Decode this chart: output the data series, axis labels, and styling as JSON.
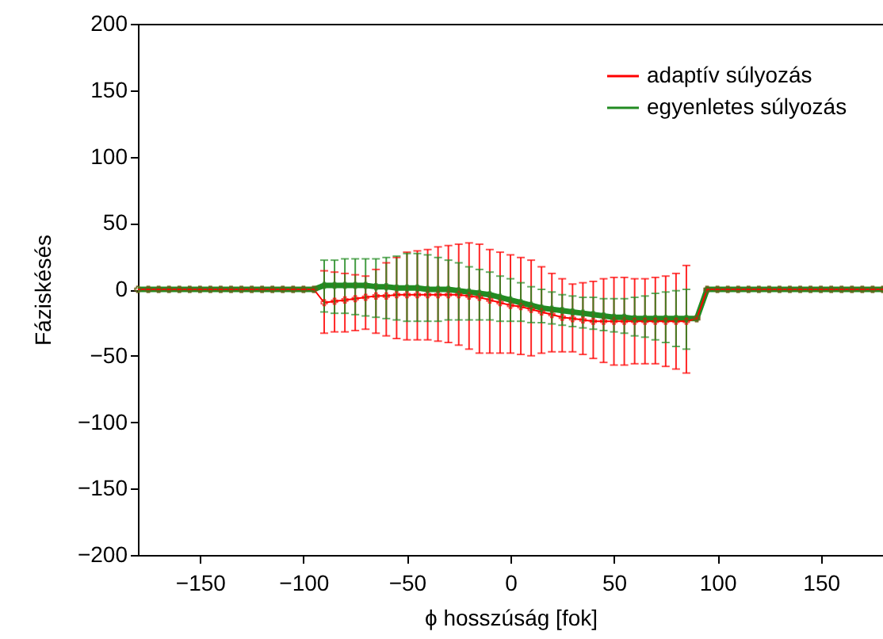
{
  "chart_data": {
    "type": "line",
    "xlabel": "ϕ hosszúság [fok]",
    "ylabel": "Fáziskésés",
    "x": [
      -180,
      -175,
      -170,
      -165,
      -160,
      -155,
      -150,
      -145,
      -140,
      -135,
      -130,
      -125,
      -120,
      -115,
      -110,
      -105,
      -100,
      -95,
      -90,
      -85,
      -80,
      -75,
      -70,
      -65,
      -60,
      -55,
      -50,
      -45,
      -40,
      -35,
      -30,
      -25,
      -20,
      -15,
      -10,
      -5,
      0,
      5,
      10,
      15,
      20,
      25,
      30,
      35,
      40,
      45,
      50,
      55,
      60,
      65,
      70,
      75,
      80,
      85,
      90,
      95,
      100,
      105,
      110,
      115,
      120,
      125,
      130,
      135,
      140,
      145,
      150,
      155,
      160,
      165,
      170,
      175,
      180
    ],
    "series": [
      {
        "name": "adaptív súlyozás",
        "color": "#ff0000",
        "values": [
          0,
          0,
          0,
          0,
          0,
          0,
          0,
          0,
          0,
          0,
          0,
          0,
          0,
          0,
          0,
          0,
          0,
          0,
          -10,
          -9,
          -8,
          -7,
          -6,
          -5,
          -5,
          -4,
          -4,
          -4,
          -4,
          -4,
          -4,
          -4,
          -5,
          -6,
          -8,
          -10,
          -12,
          -13,
          -15,
          -17,
          -19,
          -21,
          -22,
          -23,
          -24,
          -24,
          -24,
          -24,
          -24,
          -24,
          -24,
          -24,
          -24,
          -24,
          -22,
          0,
          0,
          0,
          0,
          0,
          0,
          0,
          0,
          0,
          0,
          0,
          0,
          0,
          0,
          0,
          0,
          0,
          0
        ],
        "errors": [
          null,
          null,
          null,
          null,
          null,
          null,
          null,
          null,
          null,
          null,
          null,
          null,
          null,
          null,
          null,
          null,
          null,
          null,
          [
            -33,
            14
          ],
          [
            -32,
            13
          ],
          [
            -32,
            12
          ],
          [
            -31,
            11
          ],
          [
            -30,
            10
          ],
          [
            -33,
            15
          ],
          [
            -35,
            20
          ],
          [
            -37,
            24
          ],
          [
            -38,
            28
          ],
          [
            -38,
            29
          ],
          [
            -38,
            30
          ],
          [
            -39,
            32
          ],
          [
            -40,
            33
          ],
          [
            -42,
            34
          ],
          [
            -45,
            35
          ],
          [
            -48,
            34
          ],
          [
            -48,
            30
          ],
          [
            -48,
            28
          ],
          [
            -48,
            26
          ],
          [
            -49,
            24
          ],
          [
            -50,
            22
          ],
          [
            -48,
            17
          ],
          [
            -47,
            12
          ],
          [
            -47,
            8
          ],
          [
            -47,
            4
          ],
          [
            -49,
            5
          ],
          [
            -52,
            6
          ],
          [
            -55,
            8
          ],
          [
            -57,
            9
          ],
          [
            -57,
            9
          ],
          [
            -56,
            8
          ],
          [
            -56,
            8
          ],
          [
            -56,
            9
          ],
          [
            -58,
            10
          ],
          [
            -60,
            12
          ],
          [
            -63,
            18
          ],
          null,
          null,
          null,
          null,
          null,
          null,
          null,
          null,
          null,
          null,
          null,
          null,
          null,
          null,
          null,
          null,
          null,
          null,
          null
        ]
      },
      {
        "name": "egyenletes súlyozás",
        "color": "#228b22",
        "values": [
          0,
          0,
          0,
          0,
          0,
          0,
          0,
          0,
          0,
          0,
          0,
          0,
          0,
          0,
          0,
          0,
          0,
          0,
          3,
          3,
          3,
          3,
          3,
          2,
          2,
          1,
          1,
          1,
          0,
          0,
          0,
          -1,
          -2,
          -3,
          -4,
          -6,
          -8,
          -10,
          -12,
          -14,
          -15,
          -16,
          -17,
          -18,
          -19,
          -20,
          -21,
          -21,
          -22,
          -22,
          -22,
          -22,
          -22,
          -22,
          -22,
          0,
          0,
          0,
          0,
          0,
          0,
          0,
          0,
          0,
          0,
          0,
          0,
          0,
          0,
          0,
          0,
          0,
          0
        ],
        "errors": [
          null,
          null,
          null,
          null,
          null,
          null,
          null,
          null,
          null,
          null,
          null,
          null,
          null,
          null,
          null,
          null,
          null,
          null,
          [
            -17,
            22
          ],
          [
            -18,
            22
          ],
          [
            -18,
            23
          ],
          [
            -19,
            23
          ],
          [
            -20,
            23
          ],
          [
            -21,
            23
          ],
          [
            -22,
            24
          ],
          [
            -23,
            25
          ],
          [
            -24,
            27
          ],
          [
            -24,
            27
          ],
          [
            -24,
            26
          ],
          [
            -24,
            24
          ],
          [
            -23,
            22
          ],
          [
            -23,
            20
          ],
          [
            -23,
            17
          ],
          [
            -23,
            15
          ],
          [
            -23,
            13
          ],
          [
            -24,
            10
          ],
          [
            -24,
            8
          ],
          [
            -24,
            5
          ],
          [
            -25,
            2
          ],
          [
            -25,
            0
          ],
          [
            -26,
            -2
          ],
          [
            -27,
            -4
          ],
          [
            -28,
            -5
          ],
          [
            -29,
            -6
          ],
          [
            -30,
            -6
          ],
          [
            -31,
            -7
          ],
          [
            -32,
            -7
          ],
          [
            -33,
            -7
          ],
          [
            -35,
            -6
          ],
          [
            -36,
            -5
          ],
          [
            -38,
            -3
          ],
          [
            -40,
            -2
          ],
          [
            -43,
            -1
          ],
          [
            -45,
            0
          ],
          null,
          null,
          null,
          null,
          null,
          null,
          null,
          null,
          null,
          null,
          null,
          null,
          null,
          null,
          null,
          null,
          null,
          null,
          null
        ]
      }
    ],
    "xlim": [
      -180,
      180
    ],
    "xticks": [
      -150,
      -100,
      -50,
      0,
      50,
      100,
      150
    ],
    "ylim": [
      -200,
      200
    ],
    "yticks": [
      -200,
      -150,
      -100,
      -50,
      0,
      50,
      100,
      150,
      200
    ],
    "legend": "top right",
    "marker": "cross",
    "line_style": "solid"
  }
}
